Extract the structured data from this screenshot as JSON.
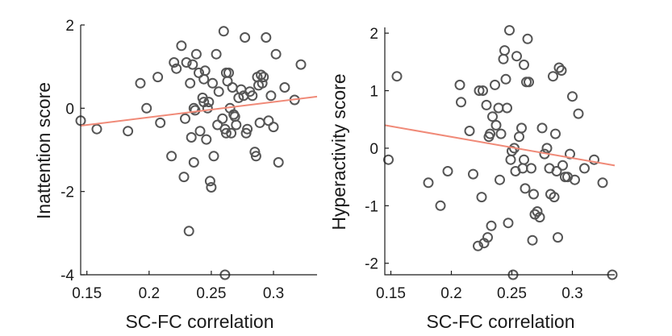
{
  "chart_data": [
    {
      "type": "scatter",
      "xlabel": "SC-FC correlation",
      "ylabel": "Inattention score",
      "xlim": [
        0.145,
        0.335
      ],
      "ylim": [
        -4,
        2
      ],
      "xticks": [
        0.15,
        0.2,
        0.25,
        0.3
      ],
      "xtick_labels": [
        "0.15",
        "0.2",
        "0.25",
        "0.3"
      ],
      "yticks": [
        -4,
        -2,
        0,
        2
      ],
      "ytick_labels": [
        "-4",
        "-2",
        "0",
        "2"
      ],
      "grid": false,
      "marker": "open-circle",
      "point_color": "#555555",
      "fit_color": "#f08a78",
      "fit_line": {
        "x": [
          0.145,
          0.335
        ],
        "y": [
          -0.42,
          0.28
        ]
      },
      "points": {
        "x": [
          0.145,
          0.158,
          0.183,
          0.193,
          0.198,
          0.207,
          0.209,
          0.218,
          0.22,
          0.222,
          0.226,
          0.228,
          0.229,
          0.23,
          0.232,
          0.233,
          0.234,
          0.235,
          0.236,
          0.236,
          0.237,
          0.238,
          0.24,
          0.241,
          0.243,
          0.244,
          0.244,
          0.245,
          0.246,
          0.247,
          0.248,
          0.249,
          0.25,
          0.251,
          0.252,
          0.254,
          0.255,
          0.256,
          0.259,
          0.26,
          0.261,
          0.261,
          0.262,
          0.262,
          0.263,
          0.264,
          0.265,
          0.266,
          0.267,
          0.268,
          0.269,
          0.27,
          0.272,
          0.274,
          0.276,
          0.277,
          0.278,
          0.279,
          0.281,
          0.283,
          0.285,
          0.286,
          0.287,
          0.288,
          0.289,
          0.29,
          0.291,
          0.292,
          0.294,
          0.296,
          0.298,
          0.3,
          0.302,
          0.304,
          0.309,
          0.317,
          0.322
        ],
        "y": [
          -0.3,
          -0.5,
          -0.55,
          0.6,
          0.0,
          0.75,
          -0.35,
          -1.15,
          1.1,
          0.95,
          1.5,
          -1.65,
          -0.25,
          1.1,
          -2.95,
          0.6,
          -0.7,
          1.05,
          0.0,
          -1.3,
          -0.05,
          1.3,
          0.85,
          -0.55,
          0.25,
          0.15,
          0.7,
          0.9,
          -0.75,
          0.0,
          0.15,
          -1.75,
          -1.9,
          0.6,
          -1.15,
          1.3,
          -0.4,
          0.4,
          -0.25,
          1.85,
          -0.5,
          -4.0,
          0.85,
          -0.6,
          0.65,
          0.85,
          0.0,
          -0.6,
          0.5,
          -0.15,
          -0.2,
          -0.4,
          0.25,
          0.45,
          0.3,
          1.7,
          -0.6,
          -0.5,
          0.4,
          0.3,
          -1.05,
          -1.15,
          0.75,
          0.55,
          -0.35,
          0.8,
          0.6,
          0.75,
          1.7,
          -0.3,
          0.3,
          -0.45,
          1.3,
          -1.3,
          0.5,
          0.2,
          1.05
        ]
      }
    },
    {
      "type": "scatter",
      "xlabel": "SC-FC correlation",
      "ylabel": "Hyperactivity score",
      "xlim": [
        0.145,
        0.335
      ],
      "ylim": [
        -2.2,
        2.1
      ],
      "xticks": [
        0.15,
        0.2,
        0.25,
        0.3
      ],
      "xtick_labels": [
        "0.15",
        "0.2",
        "0.25",
        "0.3"
      ],
      "yticks": [
        -2,
        -1,
        0,
        1,
        2
      ],
      "ytick_labels": [
        "-2",
        "-1",
        "0",
        "1",
        "2"
      ],
      "grid": false,
      "marker": "open-circle",
      "point_color": "#555555",
      "fit_color": "#f08a78",
      "fit_line": {
        "x": [
          0.145,
          0.335
        ],
        "y": [
          0.4,
          -0.3
        ]
      },
      "points": {
        "x": [
          0.148,
          0.155,
          0.181,
          0.191,
          0.197,
          0.207,
          0.208,
          0.215,
          0.218,
          0.222,
          0.223,
          0.225,
          0.226,
          0.227,
          0.229,
          0.23,
          0.231,
          0.232,
          0.233,
          0.234,
          0.236,
          0.237,
          0.239,
          0.24,
          0.241,
          0.243,
          0.244,
          0.245,
          0.246,
          0.247,
          0.248,
          0.249,
          0.25,
          0.251,
          0.252,
          0.253,
          0.254,
          0.256,
          0.258,
          0.259,
          0.26,
          0.26,
          0.261,
          0.262,
          0.263,
          0.264,
          0.266,
          0.267,
          0.268,
          0.269,
          0.271,
          0.273,
          0.275,
          0.277,
          0.279,
          0.281,
          0.282,
          0.284,
          0.285,
          0.286,
          0.287,
          0.288,
          0.289,
          0.291,
          0.292,
          0.294,
          0.296,
          0.298,
          0.3,
          0.302,
          0.305,
          0.31,
          0.318,
          0.325,
          0.333
        ],
        "y": [
          -0.2,
          1.25,
          -0.6,
          -1.0,
          -0.4,
          1.1,
          0.8,
          0.3,
          -0.45,
          -1.7,
          1.0,
          -0.85,
          1.0,
          -1.65,
          0.75,
          -1.55,
          0.2,
          0.25,
          -1.35,
          0.55,
          1.1,
          0.4,
          0.7,
          -0.55,
          0.25,
          1.55,
          1.7,
          1.2,
          0.7,
          -1.3,
          2.05,
          -0.2,
          -0.05,
          -2.2,
          0.0,
          -0.4,
          1.6,
          0.2,
          0.35,
          -0.35,
          -0.2,
          1.45,
          -0.7,
          1.15,
          1.9,
          1.15,
          -0.35,
          -1.6,
          -0.8,
          -1.15,
          -1.1,
          -1.2,
          0.35,
          -0.1,
          0.0,
          -0.35,
          -0.8,
          1.25,
          -0.85,
          0.25,
          -0.4,
          -1.55,
          1.4,
          1.35,
          -0.3,
          -0.5,
          -0.5,
          -0.1,
          0.9,
          -0.55,
          0.6,
          -0.35,
          -0.2,
          -0.6,
          -2.2
        ]
      }
    }
  ]
}
